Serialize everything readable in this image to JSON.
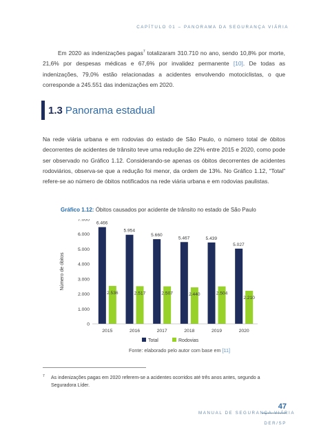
{
  "header": {
    "chapter": "CAPÍTULO 01 – PANORAMA DA SEGURANÇA VIÁRIA"
  },
  "intro": {
    "text_a": "Em 2020 as indenizações pagas",
    "footnote_ref": "7",
    "text_b": " totalizaram 310.710 no ano, sendo 10,8% por morte, 21,6% por despesas médicas e 67,6% por invalidez permanente ",
    "cite": "[10]",
    "text_c": ". De todas as indenizações, 79,0% estão relacionadas a acidentes envolvendo motociclistas, o que corresponde a 245.551 das indenizações em 2020."
  },
  "section": {
    "number": "1.3",
    "title": "Panorama estadual"
  },
  "body": {
    "text": "Na rede viária urbana e em rodovias do estado de São Paulo, o número total de óbitos decorrentes de acidentes de trânsito teve uma redução de 22% entre 2015 e 2020, como pode ser observado no Gráfico 1.12. Considerando-se apenas os óbitos decorrentes de acidentes rodoviários, observa-se que a redução foi menor, da ordem de 13%. No Gráfico 1.12, “Total” refere-se ao número de óbitos notificados na rede viária urbana e em rodovias paulistas."
  },
  "figure": {
    "label": "Gráfico 1.12:",
    "caption": " Óbitos causados por acidente de trânsito no estado de São Paulo",
    "source": "Fonte: elaborado pelo autor com base em ",
    "source_cite": "[11]"
  },
  "chart_data": {
    "type": "bar",
    "categories": [
      "2015",
      "2016",
      "2017",
      "2018",
      "2019",
      "2020"
    ],
    "series": [
      {
        "name": "Total",
        "values": [
          6466,
          5954,
          5660,
          5467,
          5439,
          5027
        ],
        "labels": [
          "6.466",
          "5.954",
          "5.660",
          "5.467",
          "5.439",
          "5.027"
        ],
        "color": "#1f2d5c"
      },
      {
        "name": "Rodovias",
        "values": [
          2536,
          2517,
          2507,
          2440,
          2504,
          2210
        ],
        "labels": [
          "2.536",
          "2.517",
          "2.507",
          "2.440",
          "2.504",
          "2.210"
        ],
        "color": "#97d12a"
      }
    ],
    "ylim": [
      0,
      7000
    ],
    "yticks": [
      0,
      1000,
      2000,
      3000,
      4000,
      5000,
      6000,
      7000
    ],
    "ytick_labels": [
      "0",
      "1.000",
      "2.000",
      "3.000",
      "4.000",
      "5.000",
      "6.000",
      "7.000"
    ],
    "ylabel": "Número de óbitos",
    "xlabel": "",
    "title": "",
    "legend": "bottom",
    "grid": false
  },
  "footnote": {
    "number": "7",
    "text": "As indenizações pagas em 2020 referem-se a acidentes ocorridos até três anos antes, segundo a Seguradora Líder."
  },
  "footer": {
    "page_number": "47",
    "title": "MANUAL DE SEGURANÇA VIÁRIA",
    "org": "DER/SP"
  }
}
